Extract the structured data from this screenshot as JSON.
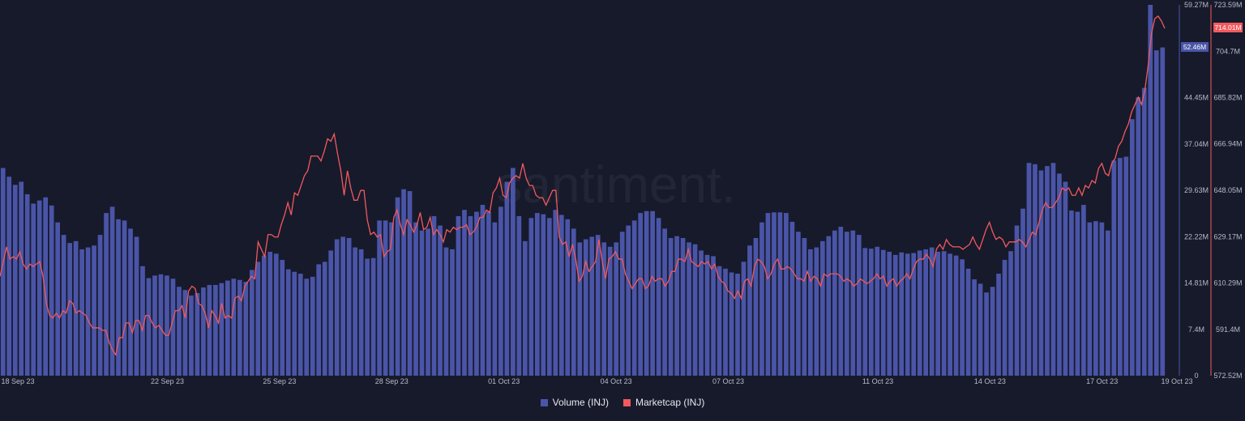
{
  "chart_data": {
    "type": "bar+line",
    "watermark": "santiment.",
    "x_tick_labels": [
      "18 Sep 23",
      "22 Sep 23",
      "25 Sep 23",
      "28 Sep 23",
      "01 Oct 23",
      "04 Oct 23",
      "07 Oct 23",
      "11 Oct 23",
      "14 Oct 23",
      "17 Oct 23",
      "19 Oct 23"
    ],
    "y_left": {
      "tick_labels": [
        "0",
        "7.4M",
        "14.81M",
        "22.22M",
        "29.63M",
        "37.04M",
        "44.45M",
        "59.27M"
      ],
      "range": [
        0,
        59.27
      ],
      "unit": "M"
    },
    "y_right": {
      "tick_labels": [
        "572.52M",
        "591.4M",
        "610.29M",
        "629.17M",
        "648.05M",
        "666.94M",
        "685.82M",
        "704.7M",
        "723.59M"
      ],
      "range": [
        572.52,
        723.59
      ],
      "unit": "M"
    },
    "last_value_badges": {
      "volume": "52.46M",
      "marketcap": "714.01M"
    },
    "series": [
      {
        "name": "Volume (INJ)",
        "kind": "bar",
        "color": "#4a55a8",
        "unit": "M",
        "values": [
          33.2,
          31.8,
          30.5,
          31,
          29,
          27.5,
          28,
          28.5,
          27.2,
          24.5,
          22.5,
          21.2,
          21.5,
          20.2,
          20.5,
          20.8,
          22.5,
          26,
          27,
          25,
          24.8,
          23.5,
          22.2,
          17.5,
          15.6,
          16,
          16.2,
          16,
          15.5,
          14.2,
          13.7,
          12.8,
          13.2,
          14.1,
          14.5,
          14.5,
          14.8,
          15.2,
          15.5,
          15.3,
          15,
          16.9,
          18.2,
          19.2,
          19.8,
          19.5,
          18.5,
          17,
          16.6,
          16.3,
          15.5,
          15.8,
          17.8,
          18.2,
          20,
          21.8,
          22.2,
          22,
          20.5,
          20.2,
          18.7,
          18.8,
          24.8,
          24.8,
          24.5,
          28.5,
          29.8,
          29.5,
          24.5,
          23.2,
          23.5,
          25.5,
          24,
          20.5,
          20.2,
          25.5,
          26.5,
          25.5,
          26.2,
          27.3,
          26.2,
          24.5,
          27,
          31,
          33.2,
          25.5,
          21.5,
          25.2,
          26,
          25.8,
          25.2,
          26.5,
          25.7,
          25,
          23.5,
          21.3,
          21.8,
          22.2,
          22.5,
          21.3,
          20.6,
          21.3,
          23,
          24,
          24.8,
          26,
          26.3,
          26.3,
          25.2,
          23.5,
          22,
          22.3,
          22,
          21.3,
          21,
          20,
          19.3,
          19.1,
          17.5,
          17.1,
          16.5,
          16.3,
          18.2,
          20.8,
          22,
          24.5,
          26,
          26.1,
          26.1,
          26,
          24.6,
          23,
          22,
          20.2,
          20.5,
          21.5,
          22.3,
          23.2,
          23.8,
          23,
          23.2,
          22.5,
          20.4,
          20.3,
          20.6,
          20.1,
          19.8,
          19.3,
          19.7,
          19.5,
          19.6,
          20,
          20.2,
          20.5,
          19.8,
          19.9,
          19.5,
          19.2,
          18.6,
          17.1,
          15.4,
          14.7,
          13.3,
          14.2,
          16.3,
          18.5,
          19.9,
          24,
          26.7,
          34,
          33.8,
          32.8,
          33.5,
          34,
          32.3,
          31,
          26.4,
          26.2,
          27.3,
          24.5,
          24.7,
          24.5,
          23.2,
          34.4,
          34.8,
          35,
          41,
          44.5,
          46,
          59.27,
          52,
          52.46
        ]
      },
      {
        "name": "Marketcap (INJ)",
        "kind": "line",
        "color": "#f2595e",
        "unit": "M",
        "values": [
          613,
          619,
          625,
          620,
          621,
          620,
          623,
          618,
          616,
          618,
          617,
          618,
          619,
          613,
          602,
          597,
          596,
          598,
          596,
          599,
          598,
          603,
          602,
          598,
          599,
          598,
          597,
          594,
          592,
          592,
          592,
          591,
          591,
          586,
          583,
          581,
          588,
          588,
          594,
          594,
          590,
          595,
          595,
          591,
          597,
          597,
          594,
          592,
          593,
          591,
          589,
          589,
          594,
          599,
          599,
          601,
          596,
          607,
          609,
          608,
          602,
          601,
          598,
          592,
          599,
          597,
          594,
          602,
          596,
          597,
          596,
          604,
          605,
          603,
          609,
          611,
          613,
          612,
          627,
          624,
          621,
          630,
          630,
          629,
          629,
          634,
          638,
          643,
          638,
          647,
          646,
          650,
          654,
          656,
          662,
          662,
          662,
          660,
          664,
          669,
          668,
          671,
          663,
          656,
          646,
          656,
          649,
          644,
          644,
          648,
          648,
          636,
          630,
          631,
          629,
          630,
          621,
          623,
          624,
          637,
          640,
          634,
          630,
          636,
          634,
          631,
          634,
          639,
          632,
          633,
          637,
          630,
          632,
          630,
          627,
          632,
          631,
          633,
          632,
          633,
          633,
          634,
          630,
          631,
          633,
          637,
          637,
          640,
          639,
          647,
          649,
          653,
          646,
          645,
          651,
          653,
          654,
          653,
          659,
          653,
          650,
          650,
          646,
          645,
          645,
          642,
          645,
          648,
          648,
          629,
          626,
          627,
          621,
          626,
          620,
          611,
          613,
          619,
          615,
          617,
          619,
          628,
          619,
          612,
          620,
          621,
          623,
          620,
          620,
          614,
          611,
          608,
          610,
          612,
          612,
          608,
          609,
          613,
          611,
          612,
          612,
          609,
          611,
          615,
          615,
          620,
          620,
          619,
          624,
          619,
          618,
          617,
          619,
          618,
          619,
          616,
          618,
          613,
          611,
          610,
          607,
          606,
          604,
          607,
          604,
          611,
          612,
          609,
          617,
          620,
          619,
          617,
          612,
          614,
          618,
          620,
          616,
          616,
          617,
          616,
          614,
          612,
          612,
          611,
          615,
          611,
          613,
          612,
          609,
          614,
          613,
          614,
          614,
          614,
          613,
          611,
          612,
          611,
          609,
          610,
          612,
          611,
          610,
          611,
          612,
          614,
          612,
          613,
          609,
          611,
          612,
          609,
          611,
          612,
          614,
          612,
          616,
          619,
          620,
          620,
          622,
          620,
          617,
          624,
          626,
          624,
          628,
          626,
          625,
          625,
          625,
          624,
          625,
          626,
          629,
          626,
          624,
          628,
          632,
          635,
          631,
          628,
          629,
          628,
          625,
          627,
          627,
          627,
          628,
          627,
          625,
          628,
          631,
          630,
          635,
          640,
          643,
          641,
          641,
          643,
          645,
          649,
          648,
          649,
          646,
          646,
          649,
          646,
          650,
          649,
          652,
          651,
          657,
          659,
          655,
          654,
          659,
          661,
          666,
          668,
          672,
          675,
          680,
          683,
          686,
          683,
          689,
          699,
          712,
          718,
          719,
          717,
          714.01
        ]
      }
    ],
    "legend": [
      {
        "label": "Volume (INJ)",
        "color": "#4a55a8"
      },
      {
        "label": "Marketcap (INJ)",
        "color": "#f2595e"
      }
    ]
  }
}
